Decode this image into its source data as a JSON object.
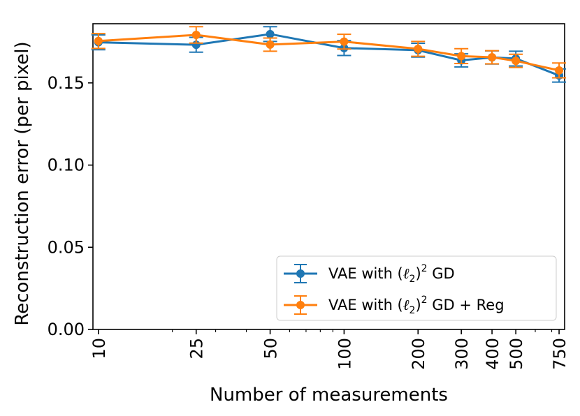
{
  "chart_data": {
    "type": "line",
    "title": "",
    "xlabel": "Number of measurements",
    "ylabel": "Reconstruction error (per pixel)",
    "x_scale": "log",
    "x_ticks": [
      10,
      25,
      50,
      100,
      200,
      300,
      400,
      500,
      750
    ],
    "x_tick_labels": [
      "10",
      "25",
      "50",
      "100",
      "200",
      "300",
      "400",
      "500",
      "750"
    ],
    "xlim": [
      9.5,
      790
    ],
    "y_ticks": [
      0.0,
      0.05,
      0.1,
      0.15
    ],
    "y_tick_labels": [
      "0.00",
      "0.05",
      "0.10",
      "0.15"
    ],
    "ylim": [
      0.0,
      0.186
    ],
    "x": [
      10,
      25,
      50,
      100,
      200,
      300,
      400,
      500,
      750
    ],
    "series": [
      {
        "name": "VAE with (ℓ2)2 GD",
        "legend_prefix": "VAE with (",
        "legend_ell": "ℓ",
        "legend_sub": "2",
        "legend_close": ")",
        "legend_sup": "2",
        "legend_suffix": " GD",
        "color": "#1f77b4",
        "values": [
          0.1747,
          0.1732,
          0.1797,
          0.1712,
          0.1699,
          0.1637,
          0.1655,
          0.1648,
          0.1545
        ],
        "errors": [
          0.0045,
          0.0045,
          0.0045,
          0.0045,
          0.0042,
          0.004,
          0.004,
          0.0045,
          0.004
        ]
      },
      {
        "name": "VAE with (ℓ2)2 GD + Reg",
        "legend_prefix": "VAE with (",
        "legend_ell": "ℓ",
        "legend_sub": "2",
        "legend_close": ")",
        "legend_sup": "2",
        "legend_suffix": " GD + Reg",
        "color": "#ff7f0e",
        "values": [
          0.1755,
          0.1792,
          0.1733,
          0.1751,
          0.1707,
          0.1663,
          0.1656,
          0.1634,
          0.1576
        ],
        "errors": [
          0.0045,
          0.005,
          0.004,
          0.0045,
          0.0045,
          0.0045,
          0.004,
          0.004,
          0.0045
        ]
      }
    ],
    "grid": false,
    "legend_position": "lower-right"
  }
}
